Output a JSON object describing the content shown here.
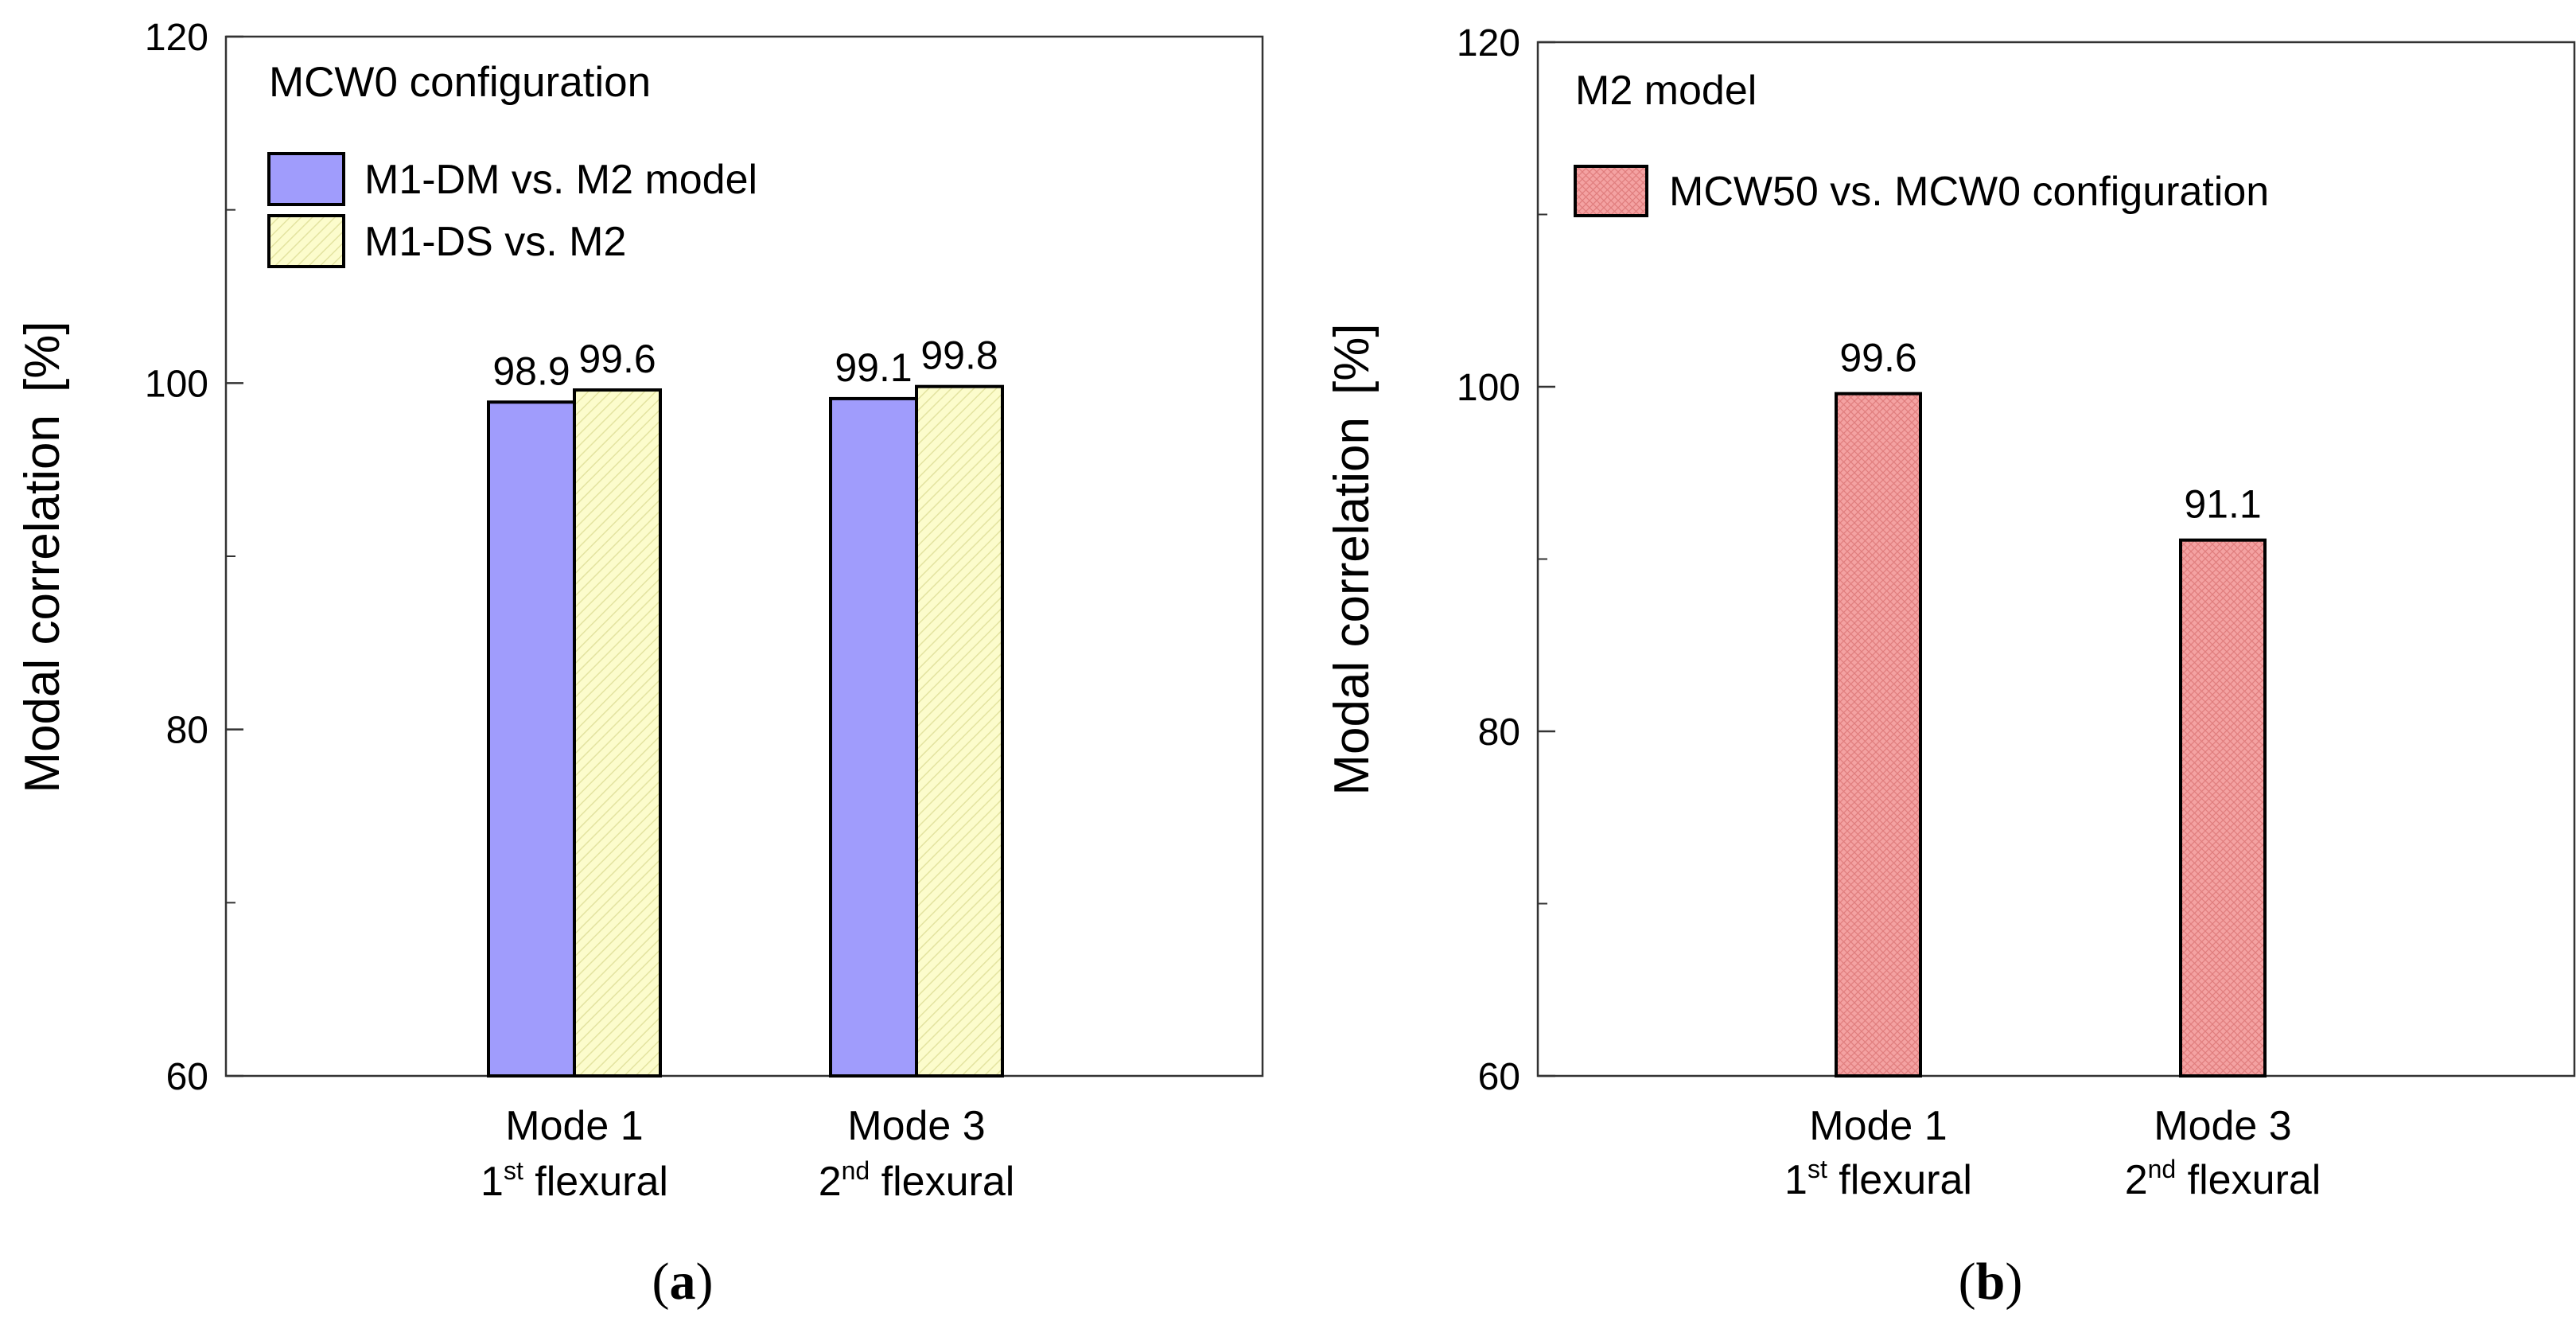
{
  "colors": {
    "blue": "#a09cfc",
    "cream": "#fcfccc",
    "cream_hatch": "#e3e3a0",
    "pink": "#f4a2a2",
    "pink_hatch": "#e07d7d"
  },
  "chart_data": [
    {
      "type": "bar",
      "panel_label_paren_open": "(",
      "panel_label": "a",
      "panel_label_paren_close": ")",
      "ylabel": "Modal correlation",
      "yunit": "[%]",
      "ylim": [
        60,
        120
      ],
      "major_ticks": [
        60,
        80,
        100,
        120
      ],
      "minor_ticks": [
        70,
        90,
        110
      ],
      "categories": [
        {
          "main": "Mode 1",
          "ordinal": "1",
          "sup": "st",
          "rest": " flexural"
        },
        {
          "main": "Mode 3",
          "ordinal": "2",
          "sup": "nd",
          "rest": " flexural"
        }
      ],
      "legend_title": "MCW0 configuration",
      "series": [
        {
          "name": "M1-DM vs. M2 model",
          "values": [
            98.9,
            99.1
          ],
          "labels": [
            "98.9",
            "99.1"
          ],
          "color_key": "blue"
        },
        {
          "name": "M1-DS vs. M2",
          "values": [
            99.6,
            99.8
          ],
          "labels": [
            "99.6",
            "99.8"
          ],
          "color_key": "cream"
        }
      ]
    },
    {
      "type": "bar",
      "panel_label_paren_open": "(",
      "panel_label": "b",
      "panel_label_paren_close": ")",
      "ylabel": "Modal correlation",
      "yunit": "[%]",
      "ylim": [
        60,
        120
      ],
      "major_ticks": [
        60,
        80,
        100,
        120
      ],
      "minor_ticks": [
        70,
        90,
        110
      ],
      "categories": [
        {
          "main": "Mode 1",
          "ordinal": "1",
          "sup": "st",
          "rest": " flexural"
        },
        {
          "main": "Mode 3",
          "ordinal": "2",
          "sup": "nd",
          "rest": " flexural"
        }
      ],
      "legend_title": "M2 model",
      "series": [
        {
          "name": "MCW50 vs. MCW0 configuration",
          "values": [
            99.6,
            91.1
          ],
          "labels": [
            "99.6",
            "91.1"
          ],
          "color_key": "pink"
        }
      ]
    }
  ]
}
